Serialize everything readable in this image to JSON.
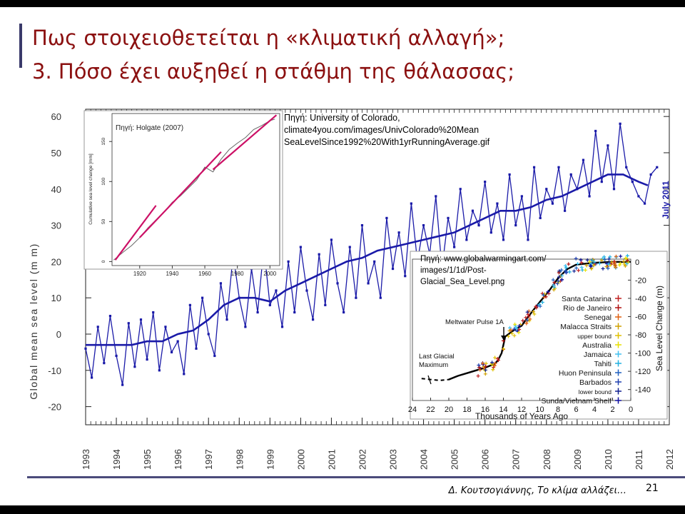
{
  "slide": {
    "title_line1": "Πως στοιχειοθετείται η «κλιματική αλλαγή»;",
    "title_line2": "3. Πόσο έχει αυξηθεί η στάθμη της θάλασσας;",
    "footer": "Δ. Κουτσογιάννης, Το κλίμα αλλάζει…",
    "page_number": "21",
    "accent_color": "#8b1010"
  },
  "sources": {
    "colorado": "Πηγή: University of Colorado,\nclimate4you.com/images/UnivColorado%20Mean\nSeaLevelSince1992%20With1yrRunningAverage.gif",
    "holgate": "Πηγή: Holgate (2007)",
    "globalwarmingart": "Πηγή: www.globalwarmingart.com/\nimages/1/1d/Post-\nGlacial_Sea_Level.png"
  },
  "chart_data": [
    {
      "type": "line",
      "ylabel": "Global mean sea level (m m)",
      "stamp": "July 2011",
      "ylim": [
        -25,
        62
      ],
      "xlim": [
        1993,
        2012
      ],
      "yticks": [
        "60",
        "50",
        "40",
        "30",
        "20",
        "10",
        "0",
        "-10",
        "-20"
      ],
      "xticks": [
        "1993",
        "1994",
        "1995",
        "1996",
        "1997",
        "1998",
        "1999",
        "2000",
        "2001",
        "2002",
        "2003",
        "2004",
        "2005",
        "2006",
        "2007",
        "2008",
        "2009",
        "2010",
        "2011",
        "2012"
      ],
      "colors": {
        "series": "#1a1aa8"
      },
      "series": [
        {
          "style": "monthly",
          "x": [
            1993.0,
            1993.2,
            1993.4,
            1993.6,
            1993.8,
            1994.0,
            1994.2,
            1994.4,
            1994.6,
            1994.8,
            1995.0,
            1995.2,
            1995.4,
            1995.6,
            1995.8,
            1996.0,
            1996.2,
            1996.4,
            1996.6,
            1996.8,
            1997.0,
            1997.2,
            1997.4,
            1997.6,
            1997.8,
            1998.0,
            1998.2,
            1998.4,
            1998.6,
            1998.8,
            1999.0,
            1999.2,
            1999.4,
            1999.6,
            1999.8,
            2000.0,
            2000.2,
            2000.4,
            2000.6,
            2000.8,
            2001.0,
            2001.2,
            2001.4,
            2001.6,
            2001.8,
            2002.0,
            2002.2,
            2002.4,
            2002.6,
            2002.8,
            2003.0,
            2003.2,
            2003.4,
            2003.6,
            2003.8,
            2004.0,
            2004.2,
            2004.4,
            2004.6,
            2004.8,
            2005.0,
            2005.2,
            2005.4,
            2005.6,
            2005.8,
            2006.0,
            2006.2,
            2006.4,
            2006.6,
            2006.8,
            2007.0,
            2007.2,
            2007.4,
            2007.6,
            2007.8,
            2008.0,
            2008.2,
            2008.4,
            2008.6,
            2008.8,
            2009.0,
            2009.2,
            2009.4,
            2009.6,
            2009.8,
            2010.0,
            2010.2,
            2010.4,
            2010.6,
            2010.8,
            2011.0,
            2011.2,
            2011.4,
            2011.6
          ],
          "values": [
            -4,
            -12,
            2,
            -8,
            5,
            -6,
            -14,
            3,
            -9,
            4,
            -7,
            6,
            -10,
            2,
            -5,
            -2,
            -11,
            8,
            -4,
            10,
            0,
            -6,
            14,
            4,
            22,
            10,
            2,
            18,
            6,
            24,
            8,
            12,
            2,
            20,
            6,
            24,
            12,
            4,
            22,
            8,
            26,
            14,
            6,
            24,
            10,
            30,
            14,
            20,
            10,
            32,
            18,
            28,
            16,
            36,
            20,
            30,
            22,
            38,
            18,
            32,
            24,
            40,
            26,
            34,
            30,
            42,
            28,
            36,
            26,
            44,
            30,
            38,
            26,
            46,
            32,
            40,
            36,
            46,
            34,
            44,
            40,
            48,
            38,
            56,
            42,
            52,
            40,
            58,
            46,
            42,
            38,
            36,
            44,
            46
          ]
        },
        {
          "style": "running-average",
          "x": [
            1993.0,
            1993.5,
            1994.0,
            1994.5,
            1995.0,
            1995.5,
            1996.0,
            1996.5,
            1997.0,
            1997.5,
            1998.0,
            1998.5,
            1999.0,
            1999.5,
            2000.0,
            2000.5,
            2001.0,
            2001.5,
            2002.0,
            2002.5,
            2003.0,
            2003.5,
            2004.0,
            2004.5,
            2005.0,
            2005.5,
            2006.0,
            2006.5,
            2007.0,
            2007.5,
            2008.0,
            2008.5,
            2009.0,
            2009.5,
            2010.0,
            2010.5,
            2011.0,
            2011.3
          ],
          "values": [
            -3,
            -3,
            -3,
            -3,
            -2,
            -2,
            0,
            1,
            4,
            8,
            10,
            10,
            9,
            12,
            14,
            16,
            18,
            20,
            21,
            23,
            24,
            25,
            26,
            27,
            28,
            30,
            32,
            34,
            34,
            35,
            37,
            38,
            40,
            42,
            44,
            44,
            42,
            41
          ]
        }
      ]
    },
    {
      "type": "line",
      "title": "Πηγή: Holgate (2007)",
      "ylabel": "Cumulative sea level change [mm]",
      "xticks": [
        "1920",
        "1940",
        "1960",
        "1980",
        "2000"
      ],
      "yticks": [
        "0",
        "50",
        "100",
        "150"
      ],
      "xlim": [
        1903,
        2006
      ],
      "ylim": [
        -5,
        185
      ],
      "series": [
        {
          "style": "observed",
          "color": "#666666",
          "x": [
            1904,
            1910,
            1915,
            1920,
            1925,
            1930,
            1935,
            1940,
            1945,
            1950,
            1955,
            1960,
            1965,
            1970,
            1975,
            1980,
            1985,
            1990,
            1995,
            2000,
            2003
          ],
          "values": [
            2,
            12,
            20,
            30,
            42,
            52,
            62,
            74,
            82,
            92,
            102,
            118,
            112,
            128,
            140,
            148,
            155,
            165,
            170,
            176,
            178
          ]
        },
        {
          "style": "trend",
          "color": "#cc1066",
          "x": [
            1905,
            1930
          ],
          "values": [
            2,
            70
          ]
        },
        {
          "style": "trend",
          "color": "#cc1066",
          "x": [
            1920,
            1970
          ],
          "values": [
            30,
            137
          ]
        },
        {
          "style": "trend",
          "color": "#cc1066",
          "x": [
            1965,
            2004
          ],
          "values": [
            115,
            183
          ]
        }
      ]
    },
    {
      "type": "scatter",
      "xlabel": "Thousands of Years Ago",
      "ylabel": "Sea Level Change (m)",
      "xticks": [
        "24",
        "22",
        "20",
        "18",
        "16",
        "14",
        "12",
        "10",
        "8",
        "6",
        "4",
        "2",
        "0"
      ],
      "yticks": [
        "0",
        "-20",
        "-40",
        "-60",
        "-80",
        "-100",
        "-120",
        "-140"
      ],
      "xlim": [
        24,
        0
      ],
      "ylim": [
        -152,
        3
      ],
      "annotations": [
        "Meltwater Pulse 1A",
        "Last Glacial\nMaximum"
      ],
      "legend": [
        {
          "name": "Santa Catarina",
          "color": "#c02020"
        },
        {
          "name": "Rio de Janeiro",
          "color": "#b01010"
        },
        {
          "name": "Senegal",
          "color": "#e06010"
        },
        {
          "name": "Malacca Straits",
          "color": "#d0a000"
        },
        {
          "name": "upper bound",
          "color": "#e0c000"
        },
        {
          "name": "Australia",
          "color": "#e8e000"
        },
        {
          "name": "Jamaica",
          "color": "#40c0f0"
        },
        {
          "name": "Tahiti",
          "color": "#20b0e0"
        },
        {
          "name": "Huon Peninsula",
          "color": "#2060c0"
        },
        {
          "name": "Barbados",
          "color": "#2040b0"
        },
        {
          "name": "lower bound",
          "color": "#102090"
        },
        {
          "name": "Sunda/Vietnam Shelf",
          "color": "#1010a0"
        }
      ],
      "series": [
        {
          "style": "reconstruction",
          "x": [
            23,
            21,
            20,
            19,
            18,
            17,
            16,
            15,
            14.6,
            14.2,
            13.8,
            13,
            12,
            11.4,
            10.8,
            10,
            9,
            8,
            7,
            6,
            4,
            2,
            0
          ],
          "values": [
            -128,
            -130,
            -129,
            -125,
            -122,
            -119,
            -116,
            -112,
            -108,
            -100,
            -82,
            -76,
            -70,
            -62,
            -54,
            -44,
            -32,
            -18,
            -8,
            -3,
            -1,
            0,
            0
          ]
        }
      ]
    }
  ]
}
